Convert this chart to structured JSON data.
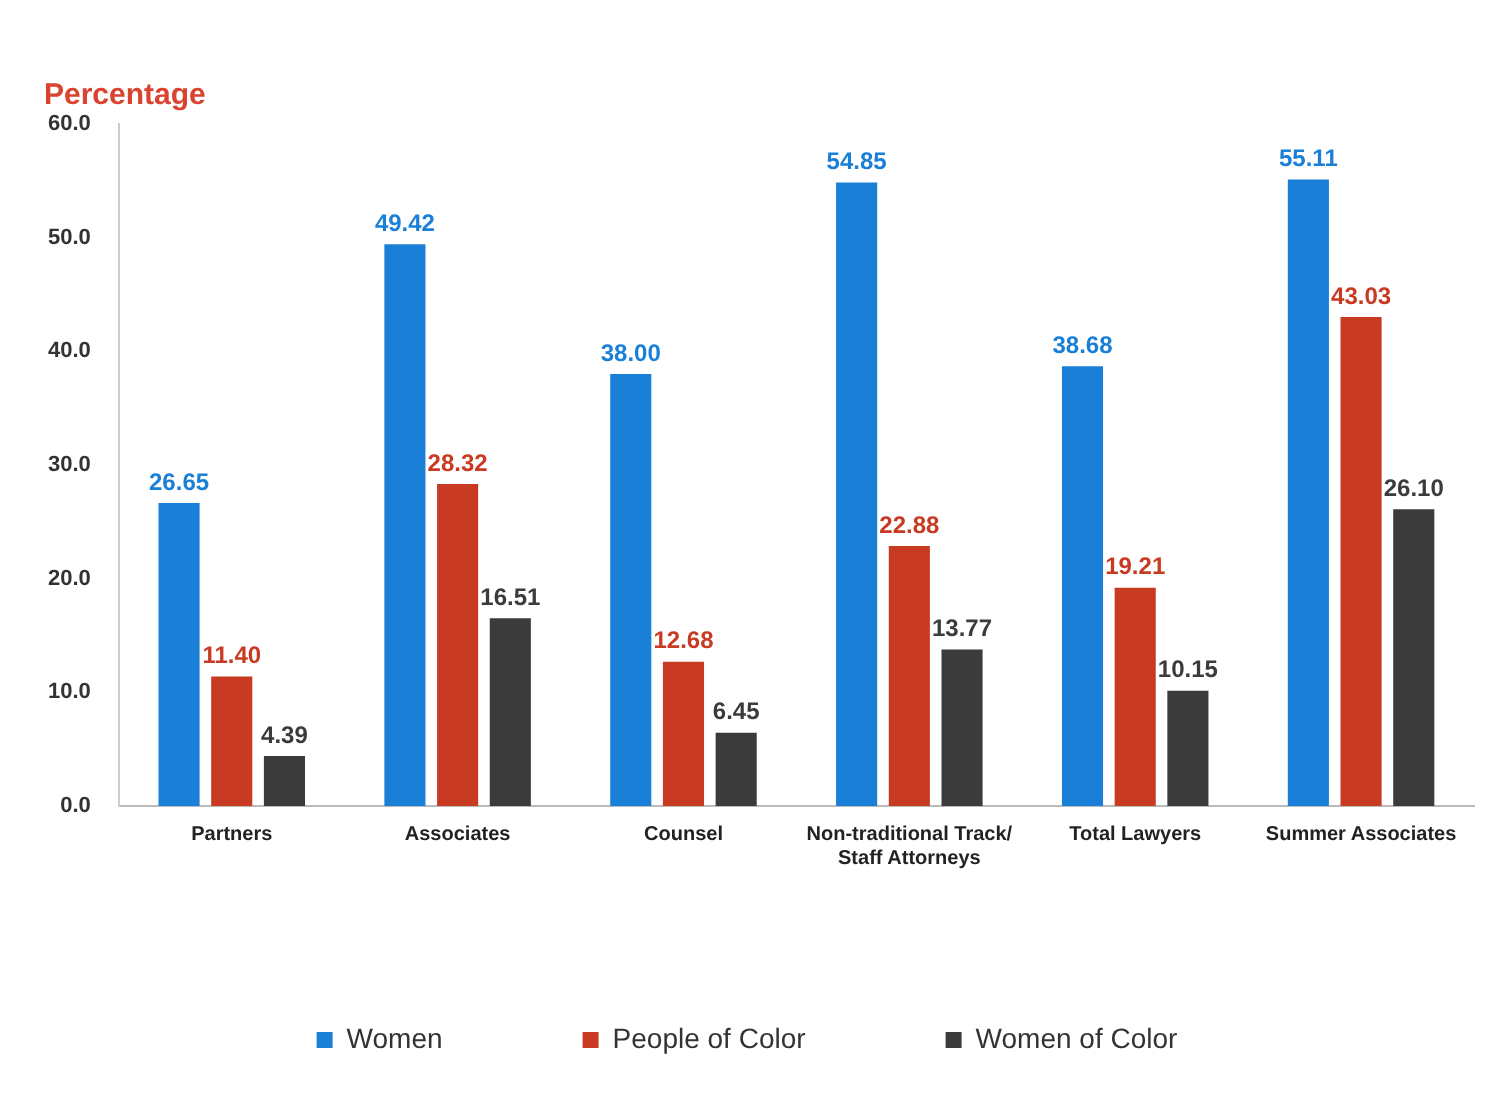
{
  "chart_data": {
    "type": "bar",
    "ylabel": "Percentage",
    "categories": [
      "Partners",
      "Associates",
      "Counsel",
      "Non-traditional Track/ Staff Attorneys",
      "Total Lawyers",
      "Summer Associates"
    ],
    "series": [
      {
        "name": "Women",
        "color": "#1a7fd6",
        "values": [
          26.65,
          49.42,
          38.0,
          54.85,
          38.68,
          55.11
        ],
        "value_labels": [
          "26.65",
          "49.42",
          "38.00",
          "54.85",
          "38.68",
          "55.11"
        ]
      },
      {
        "name": "People of Color",
        "color": "#c83a22",
        "values": [
          11.4,
          28.32,
          12.68,
          22.88,
          19.21,
          43.03
        ],
        "value_labels": [
          "11.40",
          "28.32",
          "12.68",
          "22.88",
          "19.21",
          "43.03"
        ]
      },
      {
        "name": "Women of Color",
        "color": "#3b3b3b",
        "values": [
          4.39,
          16.51,
          6.45,
          13.77,
          10.15,
          26.1
        ],
        "value_labels": [
          "4.39",
          "16.51",
          "6.45",
          "13.77",
          "10.15",
          "26.10"
        ]
      }
    ],
    "ylim": [
      0,
      60
    ],
    "yticks": [
      {
        "value": 0,
        "label": "0.0"
      },
      {
        "value": 10,
        "label": "10.0"
      },
      {
        "value": 20,
        "label": "20.0"
      },
      {
        "value": 30,
        "label": "30.0"
      },
      {
        "value": 40,
        "label": "40.0"
      },
      {
        "value": 50,
        "label": "50.0"
      },
      {
        "value": 60,
        "label": "60.0"
      }
    ],
    "legend": "bottom"
  }
}
